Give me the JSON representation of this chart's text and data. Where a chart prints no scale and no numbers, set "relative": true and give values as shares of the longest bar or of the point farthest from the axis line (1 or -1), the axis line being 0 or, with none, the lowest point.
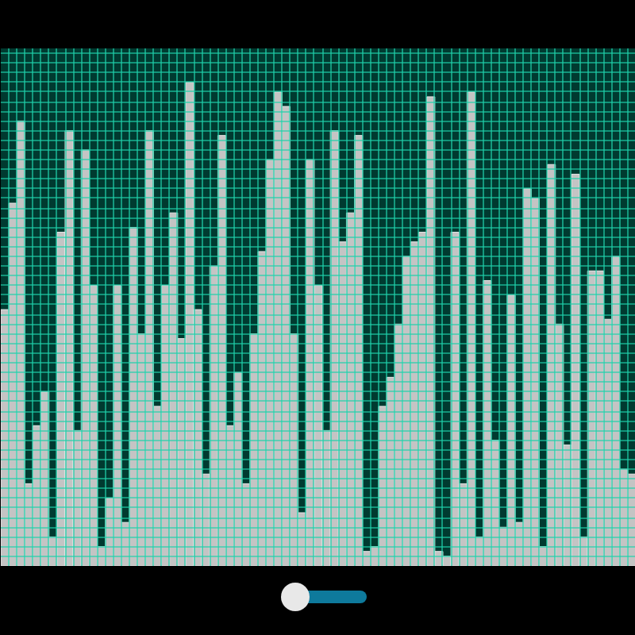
{
  "chart_data": {
    "type": "bar",
    "relative": true,
    "grid": true,
    "color": "#c4c4c4",
    "categories": [
      null,
      null,
      null,
      null,
      null,
      null,
      null,
      null,
      null,
      null,
      null,
      null,
      null,
      null,
      null,
      null,
      null,
      null,
      null,
      null,
      null,
      null,
      null,
      null,
      null,
      null,
      null,
      null,
      null,
      null,
      null,
      null,
      null,
      null,
      null,
      null,
      null,
      null,
      null,
      null,
      null,
      null,
      null,
      null,
      null,
      null,
      null,
      null,
      null,
      null,
      null,
      null,
      null,
      null,
      null,
      null,
      null,
      null,
      null,
      null,
      null,
      null,
      null,
      null,
      null,
      null,
      null,
      null,
      null,
      null,
      null,
      null,
      null,
      null,
      null,
      null,
      null,
      null,
      null
    ],
    "values": [
      0.53,
      0.75,
      0.92,
      0.17,
      0.29,
      0.36,
      0.06,
      0.69,
      0.9,
      0.28,
      0.86,
      0.58,
      0.04,
      0.14,
      0.58,
      0.09,
      0.7,
      0.48,
      0.9,
      0.33,
      0.58,
      0.73,
      0.47,
      1,
      0.53,
      0.19,
      0.62,
      0.89,
      0.29,
      0.4,
      0.17,
      0.48,
      0.65,
      0.84,
      0.98,
      0.95,
      0.48,
      0.11,
      0.84,
      0.58,
      0.28,
      0.9,
      0.67,
      0.73,
      0.89,
      0.03,
      0.04,
      0.33,
      0.39,
      0.5,
      0.64,
      0.67,
      0.69,
      0.97,
      0.03,
      0.02,
      0.69,
      0.17,
      0.98,
      0.06,
      0.59,
      0.26,
      0.08,
      0.56,
      0.09,
      0.78,
      0.76,
      0.04,
      0.83,
      0.5,
      0.25,
      0.81,
      0.06,
      0.61,
      0.61,
      0.51,
      0.64,
      0.2,
      0.19
    ]
  }
}
